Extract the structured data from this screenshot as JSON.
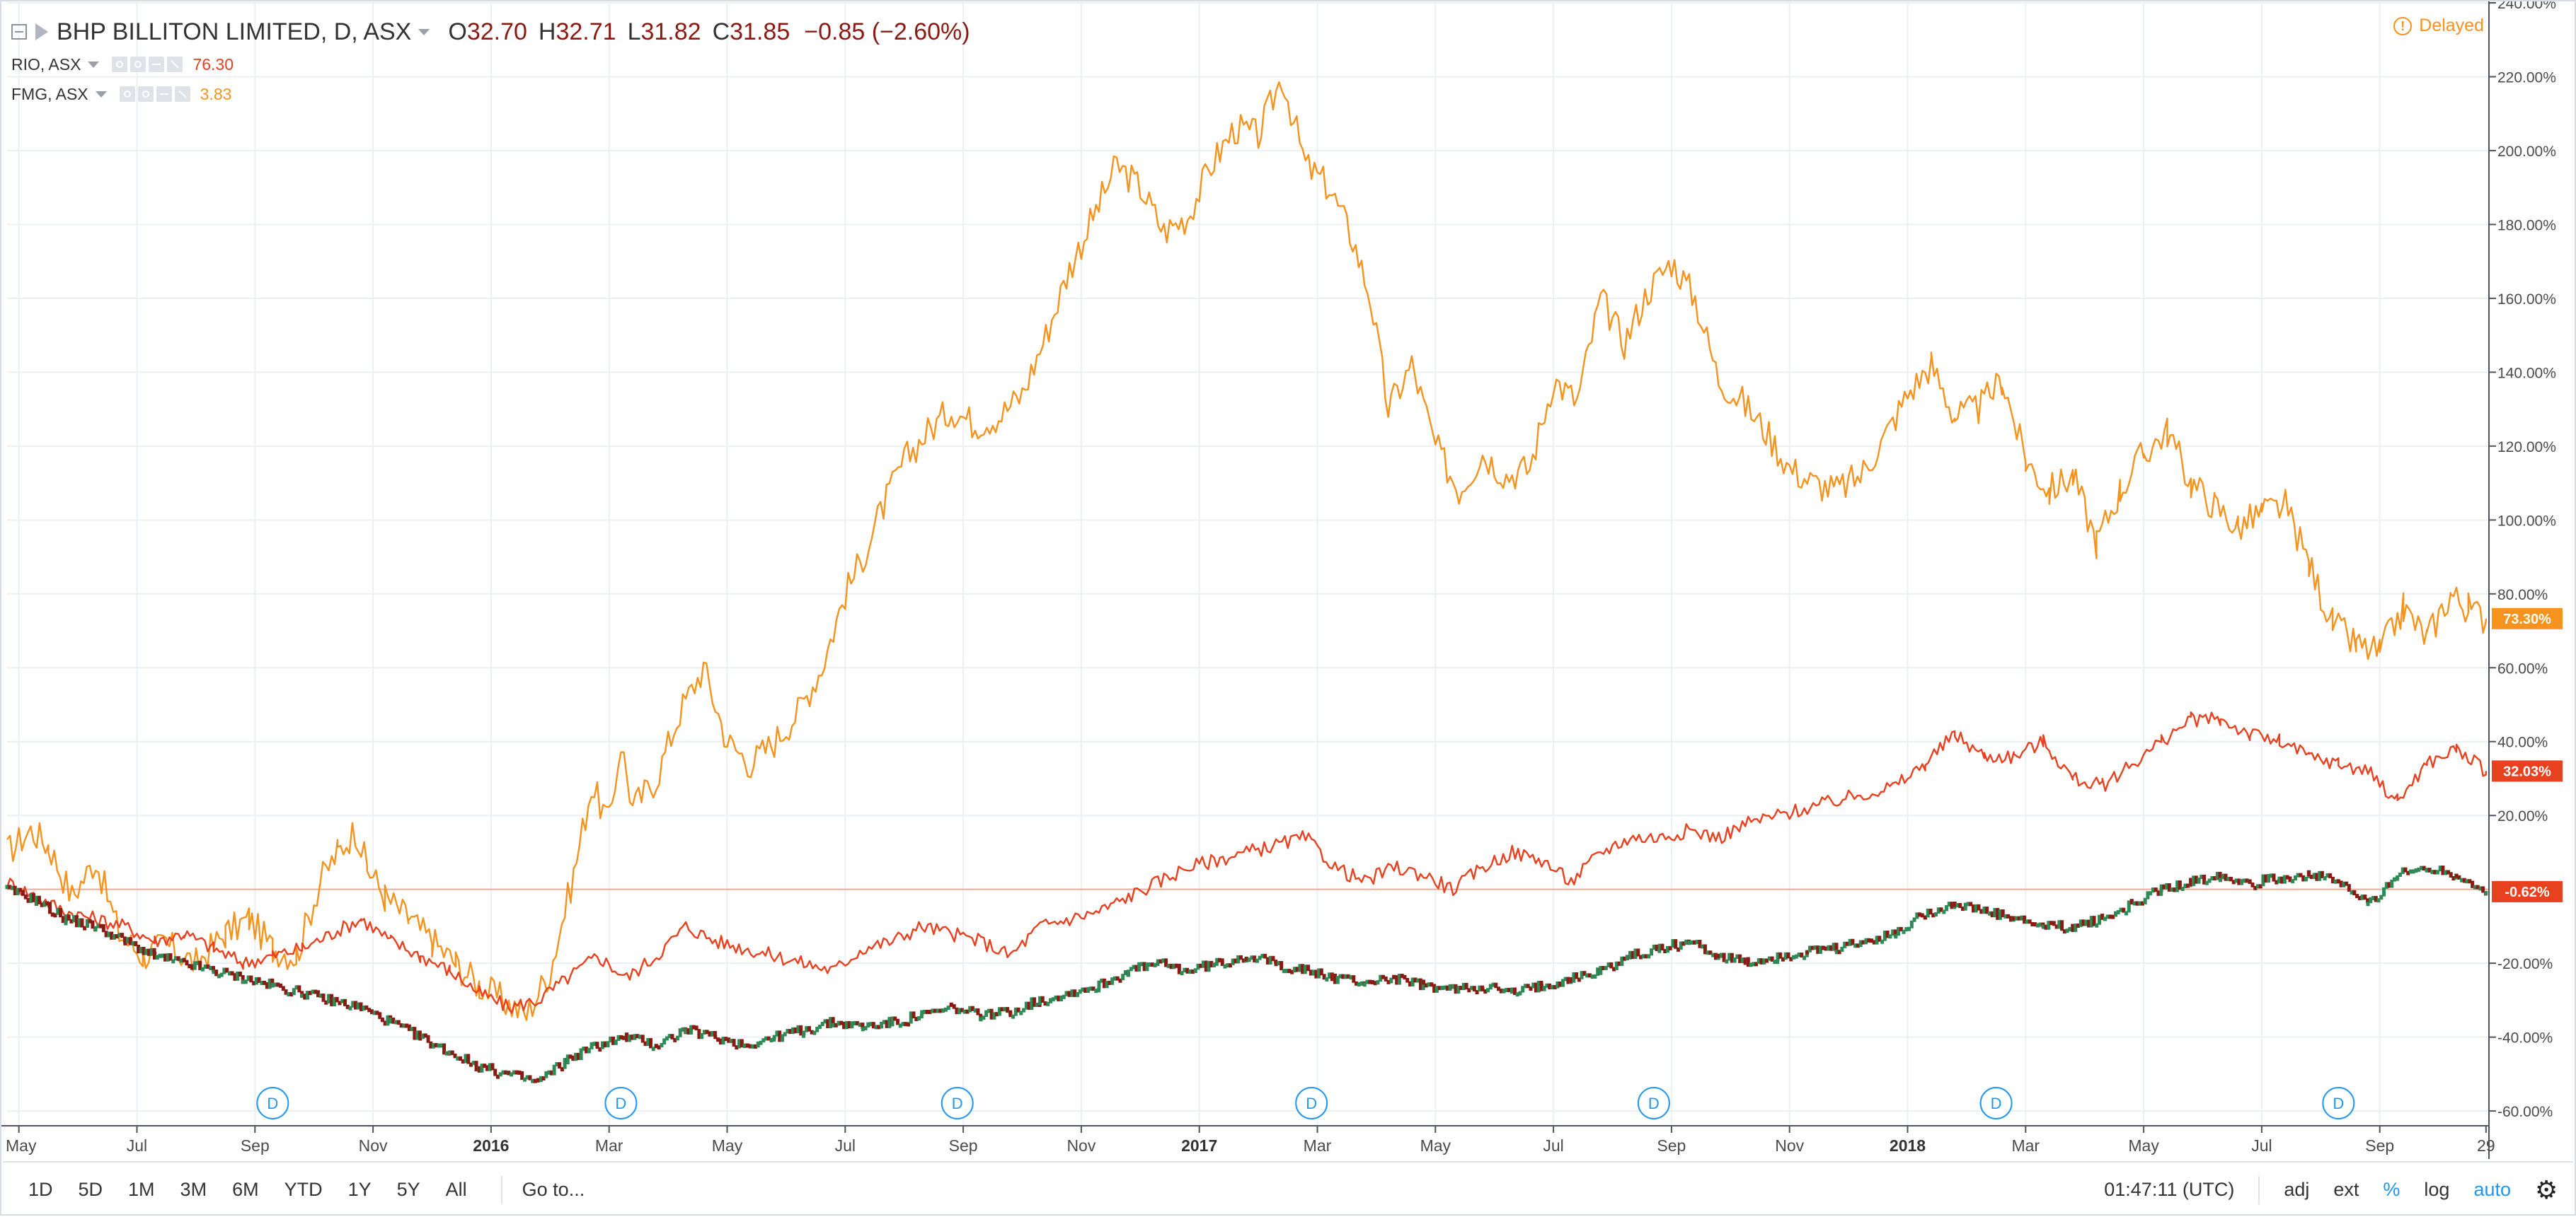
{
  "legend": {
    "main": {
      "name": "BHP BILLITON LIMITED, D, ASX",
      "o_key": "O",
      "o": "32.70",
      "h_key": "H",
      "h": "32.71",
      "l_key": "L",
      "l": "31.82",
      "c_key": "C",
      "c": "31.85",
      "change": "−0.85 (−2.60%)"
    },
    "rio": {
      "name": "RIO, ASX",
      "value": "76.30"
    },
    "fmg": {
      "name": "FMG, ASX",
      "value": "3.83"
    }
  },
  "delayed_label": "Delayed",
  "bottom_bar": {
    "ranges": [
      "1D",
      "5D",
      "1M",
      "3M",
      "6M",
      "YTD",
      "1Y",
      "5Y",
      "All"
    ],
    "goto": "Go to...",
    "time": "01:47:11 (UTC)",
    "adj": "adj",
    "ext": "ext",
    "percent": "%",
    "log": "log",
    "auto": "auto"
  },
  "colors": {
    "fmg": "#f5931e",
    "rio": "#e8411f",
    "bhp_up": "#2e8b57",
    "bhp_down": "#8b1a12",
    "zero_line": "#f4a898",
    "grid": "#eceff3",
    "d_marker": "#2196f3"
  },
  "chart_data": {
    "type": "line",
    "y_unit": "%",
    "ylim": [
      -64,
      240
    ],
    "y_ticks": [
      "240.00%",
      "220.00%",
      "200.00%",
      "180.00%",
      "160.00%",
      "140.00%",
      "120.00%",
      "100.00%",
      "80.00%",
      "60.00%",
      "40.00%",
      "20.00%",
      "-20.00%",
      "-40.00%",
      "-60.00%"
    ],
    "y_tick_values": [
      240,
      220,
      200,
      180,
      160,
      140,
      120,
      100,
      80,
      60,
      40,
      20,
      -20,
      -40,
      -60
    ],
    "x_ticks": [
      {
        "label": "May",
        "t": 0.0,
        "bold": false
      },
      {
        "label": "Jul",
        "t": 2.0,
        "bold": false
      },
      {
        "label": "Sep",
        "t": 4.0,
        "bold": false
      },
      {
        "label": "Nov",
        "t": 6.0,
        "bold": false
      },
      {
        "label": "2016",
        "t": 8.0,
        "bold": true
      },
      {
        "label": "Mar",
        "t": 10.0,
        "bold": false
      },
      {
        "label": "May",
        "t": 12.0,
        "bold": false
      },
      {
        "label": "Jul",
        "t": 14.0,
        "bold": false
      },
      {
        "label": "Sep",
        "t": 16.0,
        "bold": false
      },
      {
        "label": "Nov",
        "t": 18.0,
        "bold": false
      },
      {
        "label": "2017",
        "t": 20.0,
        "bold": true
      },
      {
        "label": "Mar",
        "t": 22.0,
        "bold": false
      },
      {
        "label": "May",
        "t": 24.0,
        "bold": false
      },
      {
        "label": "Jul",
        "t": 26.0,
        "bold": false
      },
      {
        "label": "Sep",
        "t": 28.0,
        "bold": false
      },
      {
        "label": "Nov",
        "t": 30.0,
        "bold": false
      },
      {
        "label": "2018",
        "t": 32.0,
        "bold": true
      },
      {
        "label": "Mar",
        "t": 34.0,
        "bold": false
      },
      {
        "label": "May",
        "t": 36.0,
        "bold": false
      },
      {
        "label": "Jul",
        "t": 38.0,
        "bold": false
      },
      {
        "label": "Sep",
        "t": 40.0,
        "bold": false
      },
      {
        "label": "29",
        "t": 41.8,
        "bold": false
      }
    ],
    "x_range": [
      -0.2,
      41.85
    ],
    "dividend_markers": [
      {
        "t": 4.3,
        "label": "D"
      },
      {
        "t": 10.2,
        "label": "D"
      },
      {
        "t": 15.9,
        "label": "D"
      },
      {
        "t": 21.9,
        "label": "D"
      },
      {
        "t": 27.7,
        "label": "D"
      },
      {
        "t": 33.5,
        "label": "D"
      },
      {
        "t": 39.3,
        "label": "D"
      }
    ],
    "last_value_tags": [
      {
        "series": "FMG, ASX",
        "label": "73.30%",
        "value": 73.3
      },
      {
        "series": "RIO, ASX",
        "label": "32.03%",
        "value": 32.03
      },
      {
        "series": "BHP BILLITON LIMITED, D, ASX",
        "label": "-0.62%",
        "value": -0.62
      }
    ],
    "series": [
      {
        "name": "FMG, ASX",
        "style": "line",
        "t": [
          -0.2,
          0.2,
          0.5,
          0.9,
          1.3,
          1.7,
          2.1,
          2.5,
          3.0,
          3.5,
          3.9,
          4.3,
          4.7,
          5.1,
          5.4,
          5.7,
          5.9,
          6.2,
          6.6,
          7.0,
          7.4,
          7.8,
          8.2,
          8.6,
          9.0,
          9.4,
          9.7,
          10.0,
          10.2,
          10.4,
          10.8,
          11.2,
          11.6,
          12.0,
          12.4,
          12.8,
          13.2,
          13.6,
          14.0,
          14.3,
          14.6,
          15.0,
          15.4,
          15.8,
          16.2,
          16.6,
          17.0,
          17.4,
          17.8,
          18.2,
          18.6,
          19.0,
          19.4,
          19.8,
          20.2,
          20.6,
          21.0,
          21.4,
          21.8,
          22.2,
          22.6,
          22.9,
          23.2,
          23.6,
          24.0,
          24.4,
          24.8,
          25.2,
          25.6,
          26.0,
          26.4,
          26.8,
          27.2,
          27.6,
          28.0,
          28.4,
          28.8,
          29.2,
          29.6,
          30.0,
          30.4,
          30.8,
          31.2,
          31.6,
          32.0,
          32.4,
          32.8,
          33.2,
          33.6,
          34.0,
          34.4,
          34.8,
          35.2,
          35.6,
          36.0,
          36.4,
          36.8,
          37.2,
          37.6,
          38.0,
          38.4,
          38.8,
          39.2,
          39.6,
          40.0,
          40.4,
          40.8,
          41.2,
          41.5,
          41.8
        ],
        "y": [
          10,
          16,
          12,
          -2,
          8,
          -12,
          -18,
          -15,
          -20,
          -12,
          -8,
          -16,
          -18,
          2,
          10,
          16,
          6,
          -2,
          -8,
          -14,
          -20,
          -26,
          -30,
          -34,
          -22,
          4,
          28,
          18,
          40,
          22,
          30,
          48,
          60,
          40,
          34,
          40,
          48,
          60,
          80,
          90,
          102,
          116,
          124,
          130,
          126,
          128,
          134,
          150,
          168,
          182,
          196,
          190,
          178,
          182,
          196,
          206,
          204,
          220,
          196,
          190,
          176,
          160,
          130,
          142,
          120,
          108,
          118,
          112,
          114,
          138,
          132,
          160,
          148,
          162,
          170,
          160,
          138,
          132,
          124,
          114,
          110,
          108,
          112,
          122,
          134,
          142,
          128,
          130,
          138,
          116,
          108,
          112,
          94,
          108,
          118,
          124,
          110,
          104,
          98,
          102,
          104,
          88,
          72,
          66,
          64,
          76,
          68,
          80,
          76,
          73.3
        ]
      },
      {
        "name": "RIO, ASX",
        "style": "line",
        "t": [
          -0.2,
          0.3,
          0.8,
          1.3,
          1.8,
          2.3,
          2.8,
          3.3,
          3.8,
          4.3,
          4.8,
          5.3,
          5.8,
          6.3,
          6.8,
          7.3,
          7.8,
          8.3,
          8.8,
          9.3,
          9.8,
          10.3,
          10.8,
          11.3,
          11.8,
          12.3,
          12.8,
          13.3,
          13.8,
          14.3,
          14.8,
          15.3,
          15.8,
          16.3,
          16.8,
          17.3,
          17.8,
          18.3,
          18.8,
          19.3,
          19.8,
          20.3,
          20.8,
          21.3,
          21.8,
          22.3,
          22.8,
          23.3,
          23.8,
          24.3,
          24.8,
          25.3,
          25.8,
          26.3,
          26.8,
          27.3,
          27.8,
          28.3,
          28.8,
          29.3,
          29.8,
          30.3,
          30.8,
          31.3,
          31.8,
          32.3,
          32.8,
          33.3,
          33.8,
          34.3,
          34.8,
          35.3,
          35.8,
          36.3,
          36.8,
          37.3,
          37.8,
          38.3,
          38.8,
          39.3,
          39.8,
          40.3,
          40.8,
          41.3,
          41.8
        ],
        "y": [
          2,
          -2,
          -6,
          -8,
          -10,
          -14,
          -12,
          -16,
          -20,
          -18,
          -16,
          -12,
          -8,
          -14,
          -18,
          -22,
          -28,
          -32,
          -30,
          -24,
          -18,
          -24,
          -18,
          -10,
          -14,
          -16,
          -18,
          -20,
          -22,
          -16,
          -14,
          -10,
          -12,
          -14,
          -18,
          -10,
          -8,
          -6,
          -2,
          2,
          6,
          8,
          10,
          12,
          14,
          6,
          2,
          6,
          4,
          0,
          6,
          10,
          8,
          2,
          10,
          14,
          14,
          16,
          14,
          18,
          20,
          22,
          24,
          26,
          28,
          34,
          42,
          36,
          36,
          40,
          30,
          28,
          34,
          40,
          46,
          46,
          42,
          40,
          36,
          34,
          32,
          24,
          34,
          38,
          32.03
        ]
      },
      {
        "name": "BHP BILLITON LIMITED, D, ASX",
        "style": "candles",
        "t": [
          -0.2,
          0.3,
          0.8,
          1.3,
          1.8,
          2.3,
          2.8,
          3.3,
          3.8,
          4.3,
          4.8,
          5.3,
          5.8,
          6.3,
          6.8,
          7.3,
          7.8,
          8.3,
          8.8,
          9.3,
          9.8,
          10.3,
          10.8,
          11.3,
          11.8,
          12.3,
          12.8,
          13.3,
          13.8,
          14.3,
          14.8,
          15.3,
          15.8,
          16.3,
          16.8,
          17.3,
          17.8,
          18.3,
          18.8,
          19.3,
          19.8,
          20.3,
          20.8,
          21.3,
          21.8,
          22.3,
          22.8,
          23.3,
          23.8,
          24.3,
          24.8,
          25.3,
          25.8,
          26.3,
          26.8,
          27.3,
          27.8,
          28.3,
          28.8,
          29.3,
          29.8,
          30.3,
          30.8,
          31.3,
          31.8,
          32.3,
          32.8,
          33.3,
          33.8,
          34.3,
          34.8,
          35.3,
          35.8,
          36.3,
          36.8,
          37.3,
          37.8,
          38.3,
          38.8,
          39.3,
          39.8,
          40.3,
          40.8,
          41.3,
          41.8
        ],
        "y": [
          0,
          -3,
          -8,
          -10,
          -14,
          -18,
          -20,
          -22,
          -24,
          -26,
          -28,
          -30,
          -32,
          -36,
          -40,
          -44,
          -48,
          -50,
          -52,
          -46,
          -42,
          -40,
          -42,
          -38,
          -40,
          -42,
          -40,
          -38,
          -36,
          -37,
          -36,
          -34,
          -32,
          -34,
          -33,
          -30,
          -28,
          -26,
          -22,
          -20,
          -22,
          -20,
          -18,
          -20,
          -22,
          -24,
          -25,
          -24,
          -26,
          -27,
          -26,
          -28,
          -26,
          -24,
          -22,
          -18,
          -16,
          -14,
          -18,
          -20,
          -18,
          -17,
          -16,
          -14,
          -12,
          -6,
          -4,
          -6,
          -8,
          -10,
          -10,
          -8,
          -4,
          0,
          2,
          4,
          2,
          3,
          4,
          2,
          -4,
          4,
          6,
          4,
          -0.62
        ]
      }
    ]
  }
}
